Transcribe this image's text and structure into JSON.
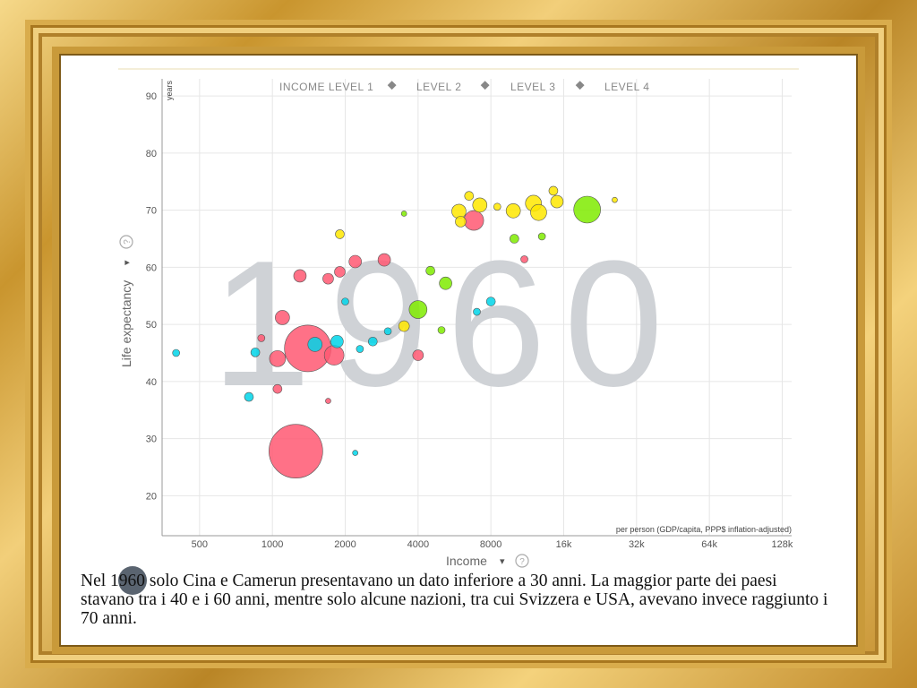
{
  "caption": "Nel 1960 solo Cina e Camerun presentavano un dato inferiore a 30 anni. La maggior parte dei paesi stavano tra i 40 e i 60 anni, mentre solo alcune nazioni, tra cui Svizzera e USA, avevano invece raggiunto i 70 anni.",
  "colors": {
    "level1": "#ff5872",
    "level2": "#00d5e9",
    "level3": "#7feb00",
    "level4": "#ffe700",
    "year": "#cfd2d6"
  },
  "chart_data": {
    "type": "scatter",
    "year_label": "1960",
    "xlabel": "Income",
    "xlabel_unit": "per person (GDP/capita, PPP$ inflation-adjusted)",
    "ylabel": "Life expectancy",
    "ylabel_unit": "years",
    "x_scale": "log",
    "xlim": [
      350,
      140000
    ],
    "ylim": [
      13,
      93
    ],
    "x_ticks": [
      500,
      1000,
      2000,
      4000,
      8000,
      16000,
      32000,
      64000,
      128000
    ],
    "x_tick_labels": [
      "500",
      "1000",
      "2000",
      "4000",
      "8000",
      "16k",
      "32k",
      "64k",
      "128k"
    ],
    "y_ticks": [
      20,
      30,
      40,
      50,
      60,
      70,
      80,
      90
    ],
    "legend": [
      "INCOME LEVEL 1",
      "LEVEL 2",
      "LEVEL 3",
      "LEVEL 4"
    ],
    "series": [
      {
        "name": "INCOME LEVEL 1",
        "color": "#ff5872",
        "points": [
          {
            "x": 1250,
            "y": 27.8,
            "s": 30
          },
          {
            "x": 1400,
            "y": 45.8,
            "s": 26
          },
          {
            "x": 1100,
            "y": 51.2,
            "s": 8
          },
          {
            "x": 1050,
            "y": 44,
            "s": 9
          },
          {
            "x": 1800,
            "y": 44.6,
            "s": 11
          },
          {
            "x": 1700,
            "y": 58,
            "s": 6
          },
          {
            "x": 1900,
            "y": 59.2,
            "s": 6
          },
          {
            "x": 2200,
            "y": 61,
            "s": 7
          },
          {
            "x": 2900,
            "y": 61.3,
            "s": 7
          },
          {
            "x": 6800,
            "y": 68.2,
            "s": 11
          },
          {
            "x": 4000,
            "y": 44.6,
            "s": 6
          },
          {
            "x": 900,
            "y": 47.6,
            "s": 4
          },
          {
            "x": 1300,
            "y": 58.5,
            "s": 7
          },
          {
            "x": 1050,
            "y": 38.7,
            "s": 5
          },
          {
            "x": 11000,
            "y": 61.4,
            "s": 4
          },
          {
            "x": 1700,
            "y": 36.6,
            "s": 3
          }
        ]
      },
      {
        "name": "LEVEL 2",
        "color": "#00d5e9",
        "points": [
          {
            "x": 1500,
            "y": 46.5,
            "s": 8
          },
          {
            "x": 1850,
            "y": 47,
            "s": 7
          },
          {
            "x": 800,
            "y": 37.3,
            "s": 5
          },
          {
            "x": 850,
            "y": 45.1,
            "s": 5
          },
          {
            "x": 2600,
            "y": 47,
            "s": 5
          },
          {
            "x": 2300,
            "y": 45.7,
            "s": 4
          },
          {
            "x": 2200,
            "y": 27.5,
            "s": 3
          },
          {
            "x": 8000,
            "y": 54,
            "s": 5
          },
          {
            "x": 7000,
            "y": 52.2,
            "s": 4
          },
          {
            "x": 2000,
            "y": 54,
            "s": 4
          },
          {
            "x": 3000,
            "y": 48.8,
            "s": 4
          },
          {
            "x": 400,
            "y": 45,
            "s": 4
          }
        ]
      },
      {
        "name": "LEVEL 3",
        "color": "#7feb00",
        "points": [
          {
            "x": 20000,
            "y": 70.1,
            "s": 15
          },
          {
            "x": 4000,
            "y": 52.6,
            "s": 10
          },
          {
            "x": 5200,
            "y": 57.2,
            "s": 7
          },
          {
            "x": 4500,
            "y": 59.4,
            "s": 5
          },
          {
            "x": 10000,
            "y": 65,
            "s": 5
          },
          {
            "x": 3500,
            "y": 69.4,
            "s": 3
          },
          {
            "x": 5000,
            "y": 49,
            "s": 4
          },
          {
            "x": 13000,
            "y": 65.4,
            "s": 4
          }
        ]
      },
      {
        "name": "LEVEL 4",
        "color": "#ffe700",
        "points": [
          {
            "x": 5900,
            "y": 69.8,
            "s": 8
          },
          {
            "x": 7200,
            "y": 70.9,
            "s": 8
          },
          {
            "x": 9900,
            "y": 69.9,
            "s": 8
          },
          {
            "x": 12000,
            "y": 71.2,
            "s": 9
          },
          {
            "x": 12600,
            "y": 69.6,
            "s": 9
          },
          {
            "x": 15000,
            "y": 71.5,
            "s": 7
          },
          {
            "x": 6000,
            "y": 68,
            "s": 6
          },
          {
            "x": 3500,
            "y": 49.7,
            "s": 6
          },
          {
            "x": 1900,
            "y": 65.8,
            "s": 5
          },
          {
            "x": 8500,
            "y": 70.6,
            "s": 4
          },
          {
            "x": 14500,
            "y": 73.4,
            "s": 5
          },
          {
            "x": 26000,
            "y": 71.8,
            "s": 3
          },
          {
            "x": 6500,
            "y": 72.5,
            "s": 5
          }
        ]
      }
    ]
  }
}
